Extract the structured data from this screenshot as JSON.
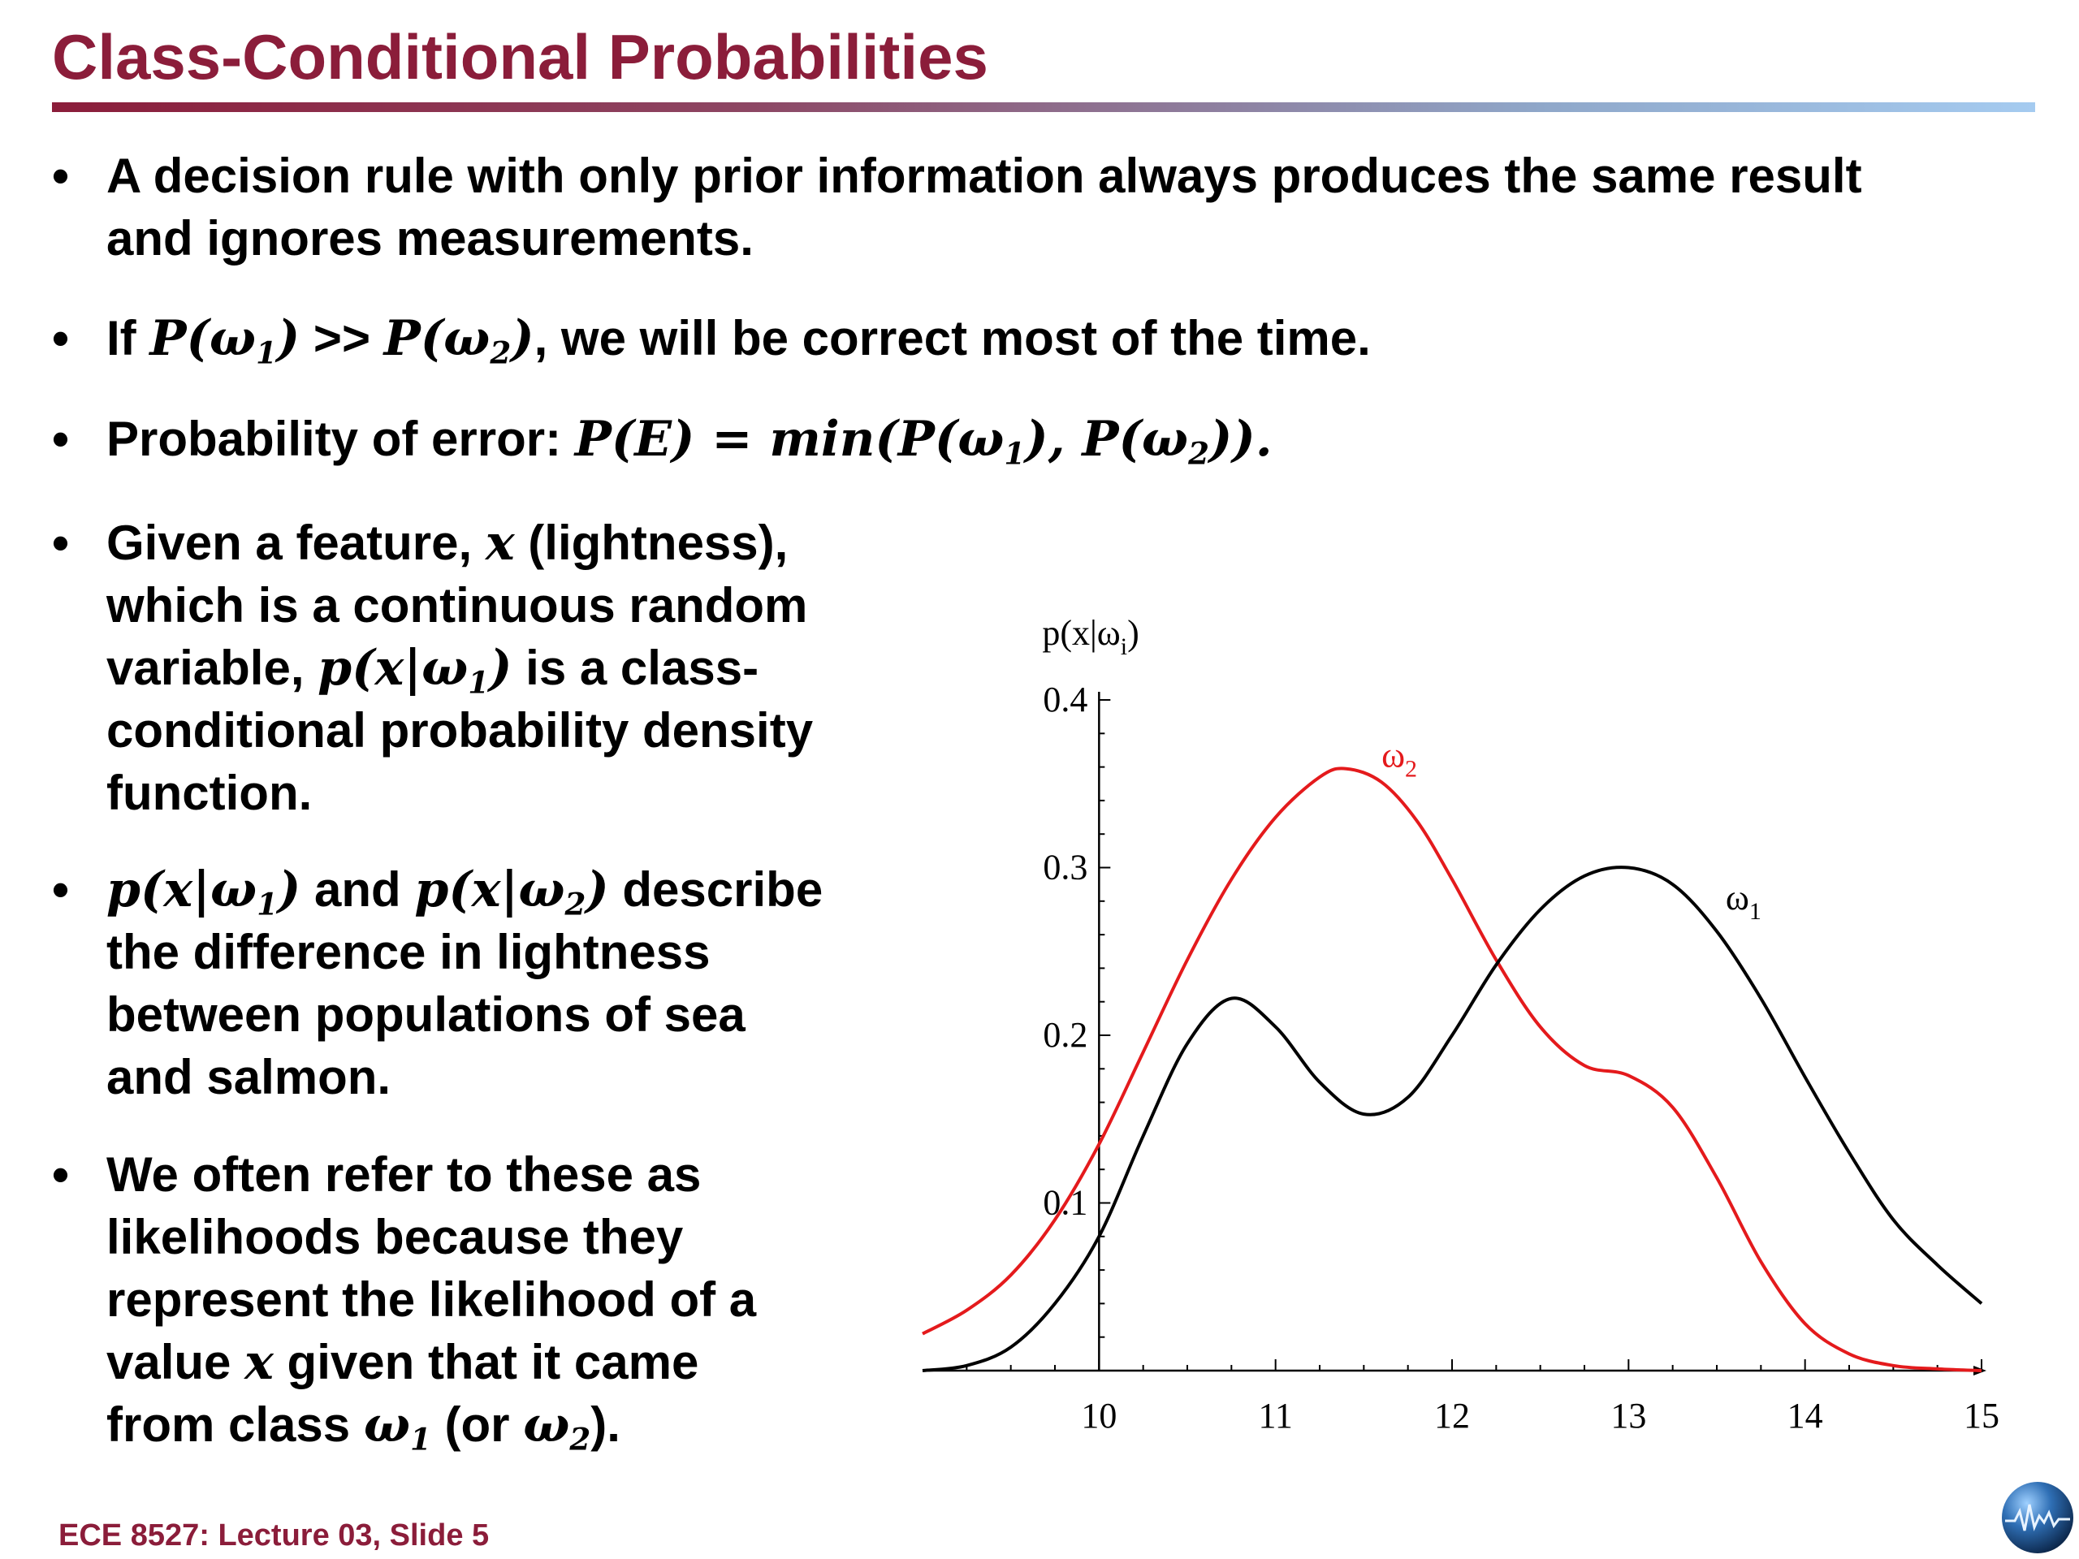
{
  "slide": {
    "title": "Class-Conditional Probabilities",
    "footer": "ECE 8527: Lecture 03, Slide 5",
    "bullet_symbol": "•",
    "title_color": "#8b1d3a"
  },
  "bullets": [
    {
      "lines": [
        "A decision rule with only prior information always produces the same result",
        "and ignores measurements."
      ]
    },
    {
      "t1": "If ",
      "m1": "P(ω",
      "s1": "1",
      "m1b": ")",
      "t2": " >> ",
      "m2": "P(ω",
      "s2": "2",
      "m2b": ")",
      "t3": ", we will be correct most of the time."
    },
    {
      "t1": "Probability of error: ",
      "m1": "P(E) = min(P(ω",
      "s1": "1",
      "m1b": "), P(ω",
      "s2": "2",
      "m2b": ")).",
      "t3": ""
    },
    {
      "l1a": "Given a feature, ",
      "l1m": "x",
      "l1b": " (lightness),",
      "l2": "which is a continuous random",
      "l3a": "variable, ",
      "l3m": "p(x|ω",
      "l3s": "1",
      "l3mb": ")",
      "l3b": "  is a class-",
      "l4": "conditional probability density",
      "l5": "function."
    },
    {
      "l1m1": "p(x|ω",
      "l1s1": "1",
      "l1m1b": ")",
      "l1a": " and ",
      "l1m2": "p(x|ω",
      "l1s2": "2",
      "l1m2b": ")",
      "l1b": " describe",
      "l2": "the difference in lightness",
      "l3": "between populations of sea",
      "l4": "and salmon."
    },
    {
      "l1": "We often refer to these as",
      "l2": "likelihoods because they",
      "l3": "represent the likelihood of a",
      "l4a": "value ",
      "l4m": "x",
      "l4b": " given that it came",
      "l5a": "from class ",
      "l5m1": "ω",
      "l5s1": "1",
      "l5b": " (or ",
      "l5m2": "ω",
      "l5s2": "2",
      "l5c": ")."
    }
  ],
  "chart_data": {
    "type": "line",
    "ylabel": "p(x|ω",
    "ylabel_sub": "i",
    "ylabel_close": ")",
    "xlim": [
      9,
      15
    ],
    "ylim": [
      0,
      0.4
    ],
    "x_ticks": [
      "10",
      "11",
      "12",
      "13",
      "14",
      "15"
    ],
    "y_ticks": [
      "0.1",
      "0.2",
      "0.3",
      "0.4"
    ],
    "series": [
      {
        "name": "ω",
        "name_sub": "2",
        "color": "#e41a1c",
        "x": [
          9,
          9.25,
          9.5,
          9.75,
          10,
          10.25,
          10.5,
          10.75,
          11,
          11.25,
          11.4,
          11.6,
          11.8,
          12,
          12.25,
          12.5,
          12.75,
          13,
          13.25,
          13.5,
          13.75,
          14,
          14.25,
          14.5,
          14.75,
          15
        ],
        "y": [
          0.022,
          0.036,
          0.057,
          0.09,
          0.135,
          0.19,
          0.245,
          0.293,
          0.33,
          0.354,
          0.359,
          0.351,
          0.328,
          0.293,
          0.245,
          0.205,
          0.182,
          0.176,
          0.157,
          0.115,
          0.065,
          0.028,
          0.01,
          0.003,
          0.001,
          0.0
        ]
      },
      {
        "name": "ω",
        "name_sub": "1",
        "color": "#000000",
        "x": [
          9,
          9.25,
          9.5,
          9.75,
          10,
          10.25,
          10.5,
          10.75,
          11,
          11.25,
          11.5,
          11.75,
          12,
          12.25,
          12.5,
          12.75,
          13,
          13.25,
          13.5,
          13.75,
          14,
          14.25,
          14.5,
          14.75,
          15
        ],
        "y": [
          0.0,
          0.003,
          0.014,
          0.04,
          0.08,
          0.14,
          0.195,
          0.222,
          0.205,
          0.172,
          0.153,
          0.163,
          0.2,
          0.242,
          0.275,
          0.295,
          0.3,
          0.29,
          0.262,
          0.222,
          0.175,
          0.13,
          0.09,
          0.063,
          0.04
        ]
      }
    ]
  }
}
